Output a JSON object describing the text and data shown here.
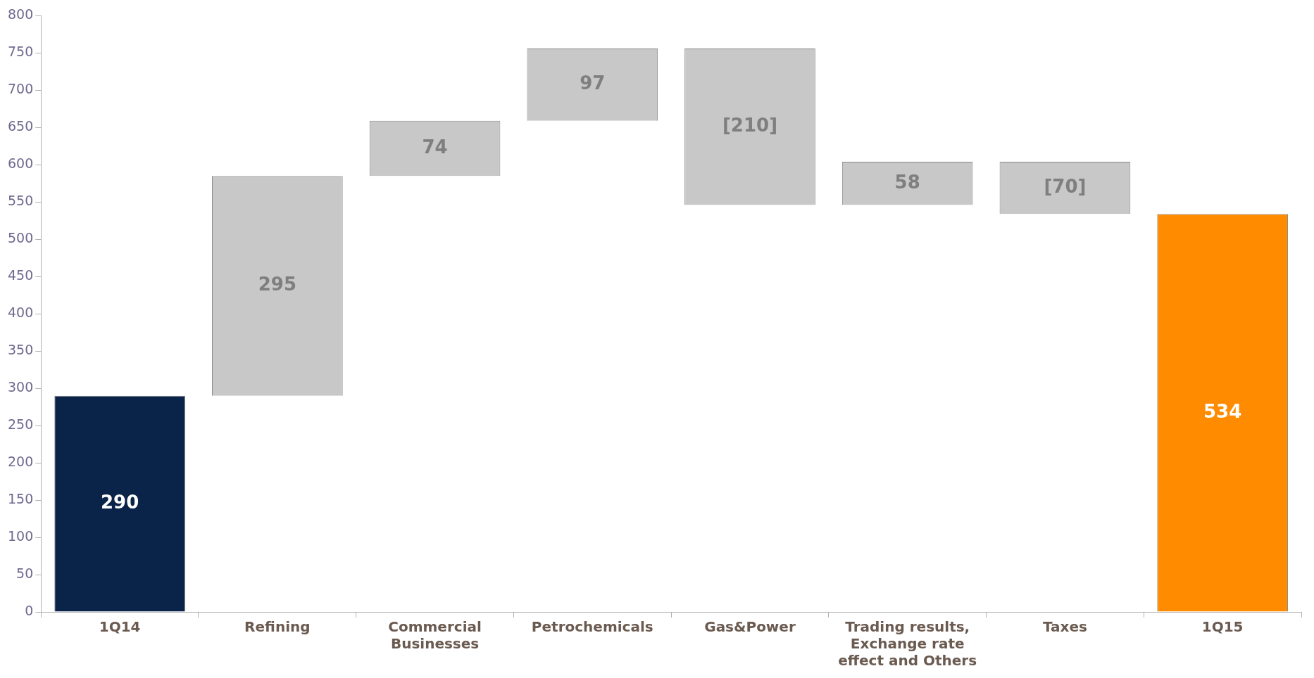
{
  "chart_data": {
    "type": "bar",
    "categories": [
      "1Q14",
      "Refining",
      "Commercial Businesses",
      "Petrochemicals",
      "Gas&Power",
      "Trading results, Exchange rate effect and Others",
      "Taxes",
      "1Q15"
    ],
    "values": [
      290,
      295,
      74,
      97,
      -210,
      58,
      -70,
      534
    ],
    "base": [
      0,
      290,
      585,
      659,
      756,
      546,
      604,
      0
    ],
    "colors": [
      "#0a2349",
      "#c8c8c8",
      "#c8c8c8",
      "#c8c8c8",
      "#c8c8c8",
      "#c8c8c8",
      "#c8c8c8",
      "#ff8c00"
    ],
    "value_labels": [
      "290",
      "295",
      "74",
      "97",
      "[210]",
      "58",
      "[70]",
      "534"
    ],
    "ylim": [
      0,
      800
    ],
    "yticks": [
      0,
      50,
      100,
      150,
      200,
      250,
      300,
      350,
      400,
      450,
      500,
      550,
      600,
      650,
      700,
      750,
      800
    ],
    "grid": false,
    "legend": false
  }
}
